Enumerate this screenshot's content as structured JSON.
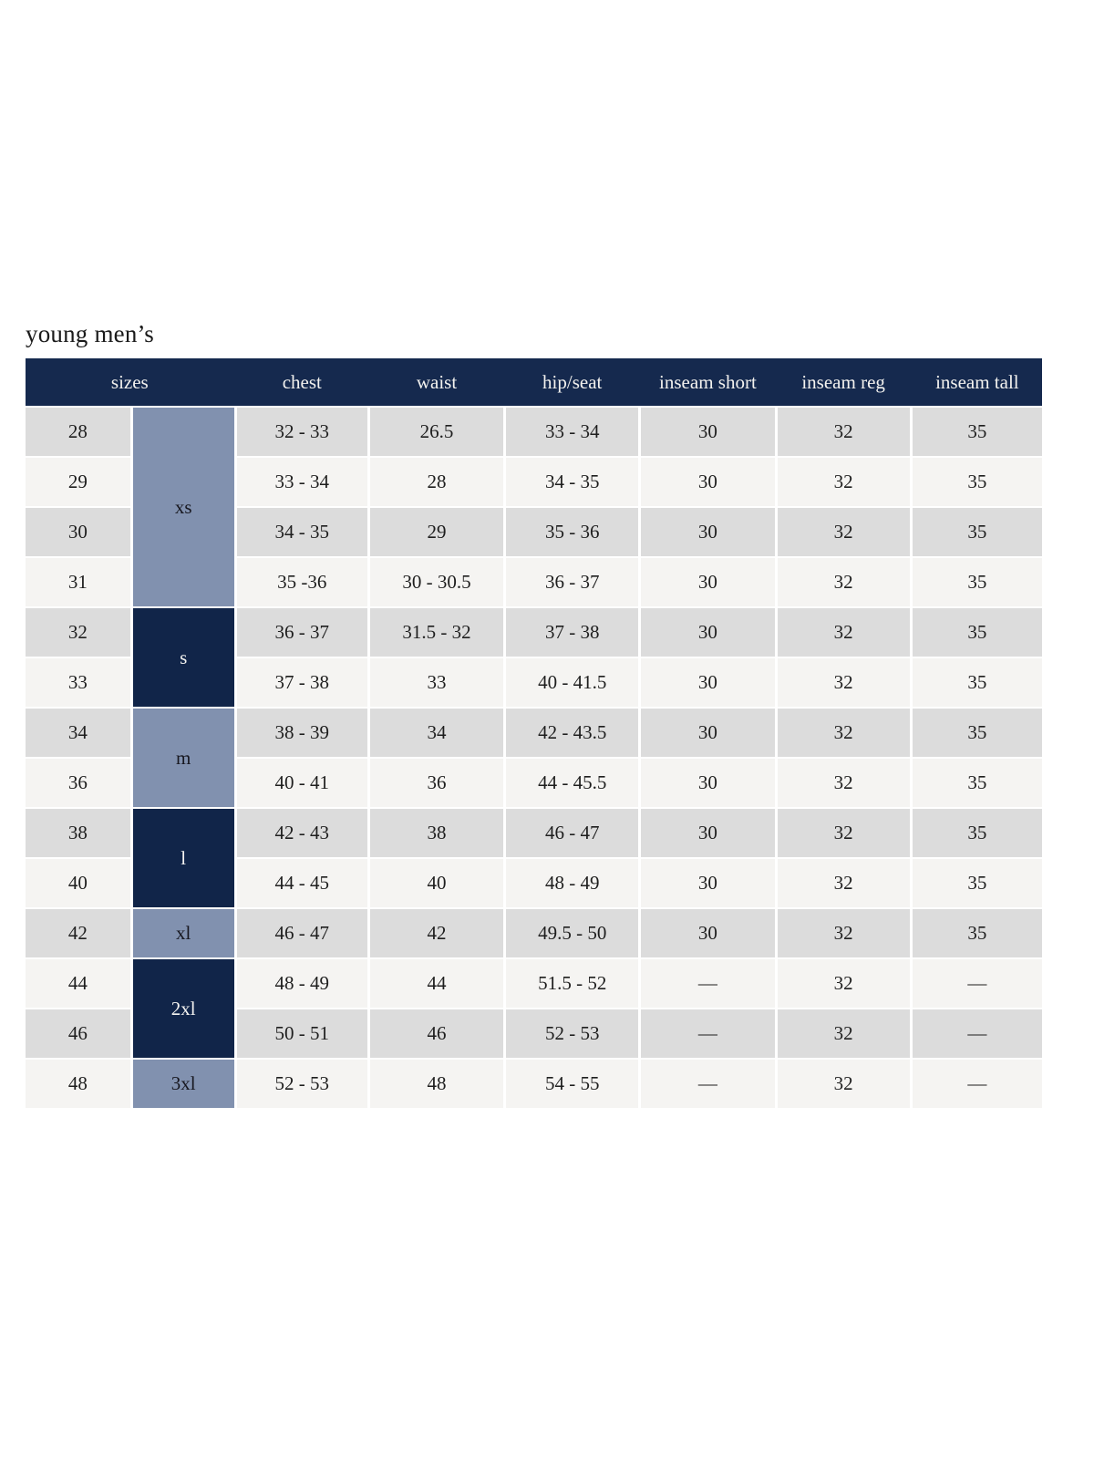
{
  "title": "young men’s",
  "colors": {
    "header_bg": "#15294E",
    "header_text": "#F3F2EF",
    "navy_group_cell": "#112549",
    "navy_group_text": "#F5F4F1",
    "slate_group_cell": "#8191AF",
    "slate_group_text": "#17171F",
    "row_gray": "#DCDCDC",
    "row_light": "#F5F4F2",
    "cell_text": "#1E1E1E"
  },
  "table": {
    "headers": [
      "sizes",
      "chest",
      "waist",
      "hip/seat",
      "inseam short",
      "inseam reg",
      "inseam tall"
    ],
    "groups": [
      {
        "label": "xs",
        "rows": 4,
        "style": "slate"
      },
      {
        "label": "s",
        "rows": 2,
        "style": "navy"
      },
      {
        "label": "m",
        "rows": 2,
        "style": "slate"
      },
      {
        "label": "l",
        "rows": 2,
        "style": "navy"
      },
      {
        "label": "xl",
        "rows": 1,
        "style": "slate"
      },
      {
        "label": "2xl",
        "rows": 2,
        "style": "navy"
      },
      {
        "label": "3xl",
        "rows": 1,
        "style": "slate"
      }
    ],
    "rows": [
      {
        "size": "28",
        "chest": "32 - 33",
        "waist": "26.5",
        "hip": "33 - 34",
        "inseam_short": "30",
        "inseam_reg": "32",
        "inseam_tall": "35"
      },
      {
        "size": "29",
        "chest": "33 - 34",
        "waist": "28",
        "hip": "34 - 35",
        "inseam_short": "30",
        "inseam_reg": "32",
        "inseam_tall": "35"
      },
      {
        "size": "30",
        "chest": "34 - 35",
        "waist": "29",
        "hip": "35 - 36",
        "inseam_short": "30",
        "inseam_reg": "32",
        "inseam_tall": "35"
      },
      {
        "size": "31",
        "chest": "35 -36",
        "waist": "30 - 30.5",
        "hip": "36 - 37",
        "inseam_short": "30",
        "inseam_reg": "32",
        "inseam_tall": "35"
      },
      {
        "size": "32",
        "chest": "36 - 37",
        "waist": "31.5 - 32",
        "hip": "37 - 38",
        "inseam_short": "30",
        "inseam_reg": "32",
        "inseam_tall": "35"
      },
      {
        "size": "33",
        "chest": "37 - 38",
        "waist": "33",
        "hip": "40 - 41.5",
        "inseam_short": "30",
        "inseam_reg": "32",
        "inseam_tall": "35"
      },
      {
        "size": "34",
        "chest": "38 - 39",
        "waist": "34",
        "hip": "42 - 43.5",
        "inseam_short": "30",
        "inseam_reg": "32",
        "inseam_tall": "35"
      },
      {
        "size": "36",
        "chest": "40 - 41",
        "waist": "36",
        "hip": "44 - 45.5",
        "inseam_short": "30",
        "inseam_reg": "32",
        "inseam_tall": "35"
      },
      {
        "size": "38",
        "chest": "42 - 43",
        "waist": "38",
        "hip": "46 - 47",
        "inseam_short": "30",
        "inseam_reg": "32",
        "inseam_tall": "35"
      },
      {
        "size": "40",
        "chest": "44 - 45",
        "waist": "40",
        "hip": "48 - 49",
        "inseam_short": "30",
        "inseam_reg": "32",
        "inseam_tall": "35"
      },
      {
        "size": "42",
        "chest": "46 - 47",
        "waist": "42",
        "hip": "49.5 - 50",
        "inseam_short": "30",
        "inseam_reg": "32",
        "inseam_tall": "35"
      },
      {
        "size": "44",
        "chest": "48 - 49",
        "waist": "44",
        "hip": "51.5 - 52",
        "inseam_short": "—",
        "inseam_reg": "32",
        "inseam_tall": "—"
      },
      {
        "size": "46",
        "chest": "50 - 51",
        "waist": "46",
        "hip": "52 - 53",
        "inseam_short": "—",
        "inseam_reg": "32",
        "inseam_tall": "—"
      },
      {
        "size": "48",
        "chest": "52 - 53",
        "waist": "48",
        "hip": "54 - 55",
        "inseam_short": "—",
        "inseam_reg": "32",
        "inseam_tall": "—"
      }
    ]
  }
}
